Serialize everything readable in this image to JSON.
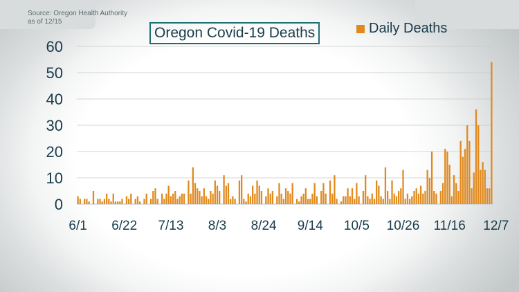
{
  "source": {
    "line1": "Source: Oregon Health Authority",
    "line2": "as of 12/15"
  },
  "colors": {
    "bar": "#e08a1e",
    "text": "#183b4a",
    "title_border": "#1f6e72",
    "grid": "#c9c9c9"
  },
  "chart_data": {
    "type": "bar",
    "title": "Oregon Covid-19 Deaths",
    "legend": [
      "Daily Deaths"
    ],
    "legend_position": "top-right",
    "xlabel": "",
    "ylabel": "",
    "ylim": [
      0,
      60
    ],
    "yticks": [
      0,
      10,
      20,
      30,
      40,
      50,
      60
    ],
    "grid": true,
    "start_date": "6/1",
    "xtick_labels": [
      "6/1",
      "6/22",
      "7/13",
      "8/3",
      "8/24",
      "9/14",
      "10/5",
      "10/26",
      "11/16",
      "12/7"
    ],
    "xtick_index": [
      0,
      21,
      42,
      63,
      84,
      105,
      126,
      147,
      168,
      189
    ],
    "series": [
      {
        "name": "Daily Deaths",
        "values": [
          3,
          2,
          0,
          2,
          2,
          1,
          0,
          5,
          0,
          2,
          2,
          1,
          2,
          4,
          2,
          1,
          4,
          1,
          1,
          1,
          2,
          0,
          3,
          2,
          4,
          0,
          2,
          3,
          1,
          0,
          2,
          4,
          0,
          2,
          5,
          6,
          2,
          0,
          4,
          2,
          4,
          7,
          3,
          4,
          5,
          2,
          3,
          4,
          4,
          0,
          9,
          4,
          14,
          8,
          6,
          5,
          3,
          6,
          3,
          2,
          5,
          4,
          9,
          7,
          5,
          0,
          11,
          7,
          8,
          2,
          3,
          2,
          0,
          9,
          11,
          2,
          1,
          4,
          3,
          7,
          4,
          9,
          7,
          5,
          0,
          3,
          6,
          4,
          5,
          0,
          3,
          8,
          4,
          2,
          6,
          5,
          4,
          8,
          0,
          2,
          1,
          3,
          4,
          6,
          2,
          2,
          4,
          8,
          3,
          0,
          5,
          8,
          4,
          0,
          9,
          4,
          11,
          2,
          0,
          1,
          3,
          3,
          6,
          3,
          6,
          2,
          8,
          3,
          0,
          5,
          11,
          3,
          2,
          4,
          2,
          9,
          7,
          3,
          2,
          14,
          5,
          2,
          9,
          4,
          3,
          5,
          6,
          13,
          2,
          4,
          2,
          3,
          5,
          6,
          4,
          7,
          4,
          5,
          13,
          10,
          20,
          5,
          4,
          0,
          5,
          8,
          21,
          20,
          15,
          3,
          11,
          8,
          5,
          24,
          18,
          21,
          30,
          24,
          6,
          12,
          36,
          30,
          13,
          16,
          13,
          6,
          6,
          54
        ]
      }
    ]
  }
}
